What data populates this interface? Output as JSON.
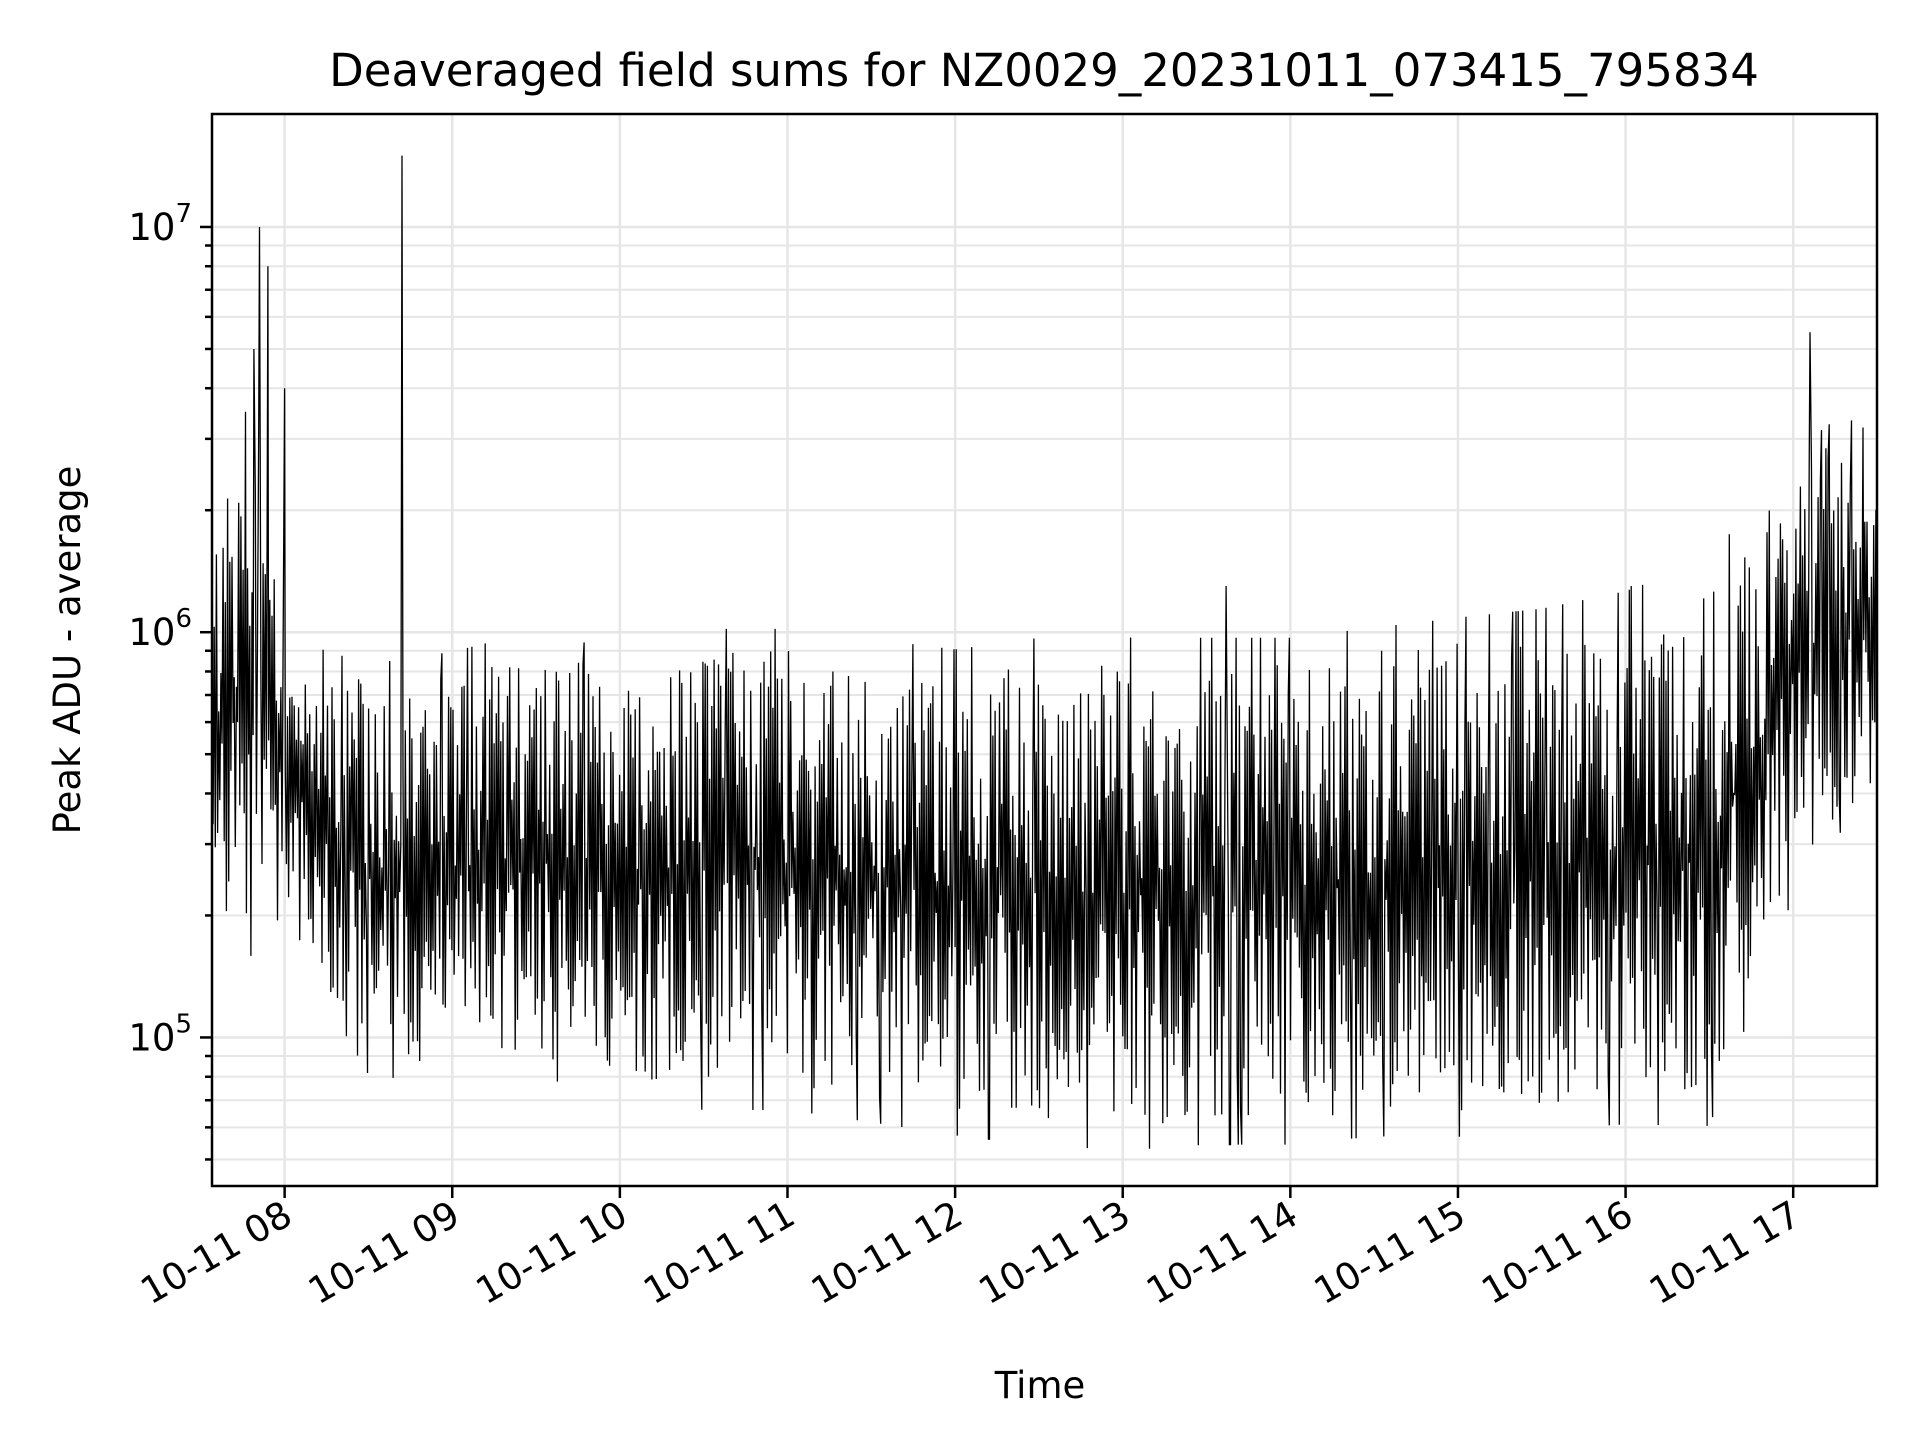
{
  "chart_data": {
    "type": "line",
    "title": "Deaveraged field sums for NZ0029_20231011_073415_795834",
    "xlabel": "Time",
    "ylabel": "Peak ADU - average",
    "yscale": "log",
    "xlim": [
      "2023-10-11 07:34",
      "2023-10-11 17:30"
    ],
    "ylim": [
      43000,
      19000000
    ],
    "x_ticks": [
      "10-11 08",
      "10-11 09",
      "10-11 10",
      "10-11 11",
      "10-11 12",
      "10-11 13",
      "10-11 14",
      "10-11 15",
      "10-11 16",
      "10-11 17"
    ],
    "y_ticks": [
      {
        "value": 100000,
        "base": "10",
        "exp": "5"
      },
      {
        "value": 1000000,
        "base": "10",
        "exp": "6"
      },
      {
        "value": 10000000,
        "base": "10",
        "exp": "7"
      }
    ],
    "grid": true,
    "series": [
      {
        "color": "#000000",
        "envelope": {
          "time": [
            "07:34",
            "07:50",
            "08:00",
            "08:30",
            "09:00",
            "09:30",
            "10:00",
            "10:30",
            "11:00",
            "11:30",
            "12:00",
            "12:30",
            "13:00",
            "13:30",
            "14:00",
            "14:30",
            "15:00",
            "15:30",
            "16:00",
            "16:30",
            "17:00",
            "17:15",
            "17:30"
          ],
          "low": [
            230000,
            150000,
            200000,
            90000,
            85000,
            90000,
            80000,
            75000,
            75000,
            70000,
            65000,
            62000,
            60000,
            62000,
            62000,
            65000,
            65000,
            68000,
            70000,
            70000,
            250000,
            350000,
            400000
          ],
          "high": [
            1500000,
            3000000,
            900000,
            750000,
            800000,
            900000,
            800000,
            900000,
            900000,
            850000,
            800000,
            850000,
            850000,
            850000,
            850000,
            900000,
            950000,
            1000000,
            1100000,
            1300000,
            2500000,
            3000000,
            3000000
          ]
        },
        "spikes": [
          {
            "time": "07:46",
            "value": 3500000
          },
          {
            "time": "07:49",
            "value": 5000000
          },
          {
            "time": "07:51",
            "value": 10000000
          },
          {
            "time": "07:54",
            "value": 8000000
          },
          {
            "time": "08:00",
            "value": 4000000
          },
          {
            "time": "08:42",
            "value": 15000000
          },
          {
            "time": "13:37",
            "value": 1300000
          },
          {
            "time": "16:02",
            "value": 1300000
          },
          {
            "time": "17:06",
            "value": 5500000
          },
          {
            "time": "17:25",
            "value": 3200000
          }
        ]
      }
    ]
  }
}
